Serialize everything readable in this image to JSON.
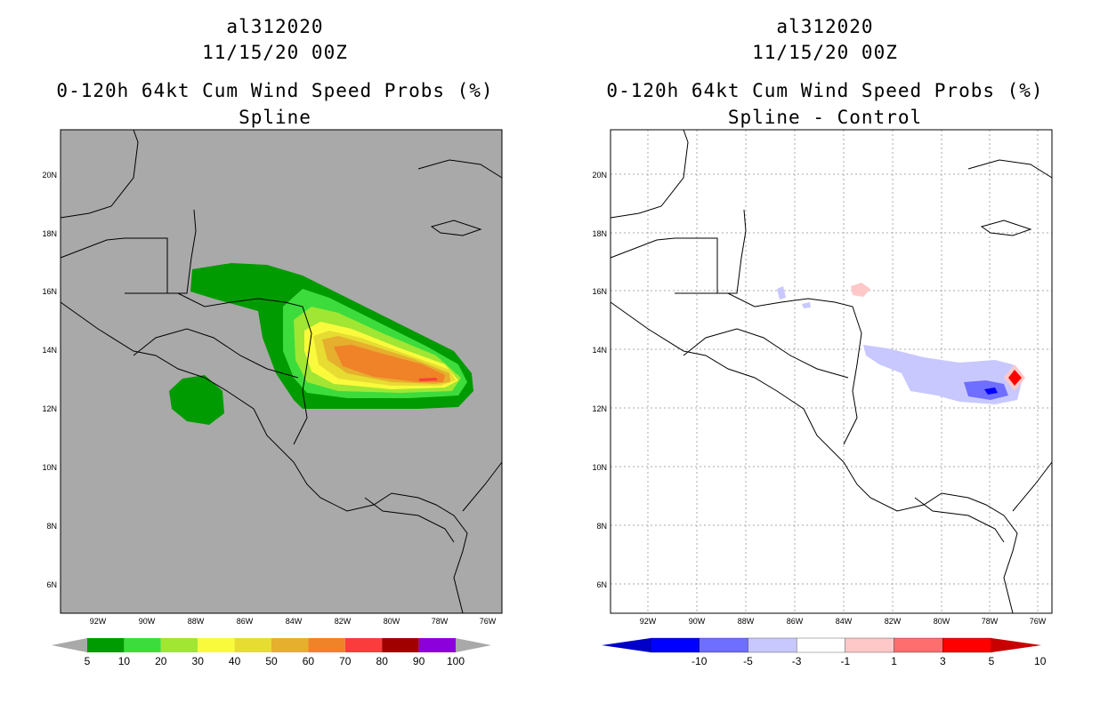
{
  "left": {
    "title_line1": "al312020",
    "title_line2": "11/15/20 00Z",
    "title_line3": "0-120h 64kt Cum Wind Speed Probs (%)",
    "title_line4": "Spline",
    "background": "#a9a9a9",
    "colorbar": {
      "labels": [
        "5",
        "10",
        "20",
        "30",
        "40",
        "50",
        "60",
        "70",
        "80",
        "90",
        "100"
      ],
      "colors": [
        "#009b00",
        "#3cdc3c",
        "#a0e632",
        "#fafa3c",
        "#e6dc32",
        "#e6af2d",
        "#f08228",
        "#fa3c3c",
        "#a00000",
        "#8c00dc"
      ]
    }
  },
  "right": {
    "title_line1": "al312020",
    "title_line2": "11/15/20 00Z",
    "title_line3": "0-120h 64kt Cum Wind Speed Probs (%)",
    "title_line4": "Spline - Control",
    "background": "#ffffff",
    "colorbar": {
      "labels": [
        "-10",
        "-5",
        "-3",
        "-1",
        "1",
        "3",
        "5",
        "10"
      ],
      "colors": [
        "#0000c8",
        "#0000ff",
        "#6e6eff",
        "#c8c8ff",
        "#ffffff",
        "#ffc8c8",
        "#ff6e6e",
        "#ff0000",
        "#c80000"
      ]
    }
  },
  "axes": {
    "lon_labels": [
      "92W",
      "90W",
      "88W",
      "86W",
      "84W",
      "82W",
      "80W",
      "78W",
      "76W"
    ],
    "lat_labels": [
      "20N",
      "18N",
      "16N",
      "14N",
      "12N",
      "10N",
      "8N",
      "6N"
    ]
  }
}
